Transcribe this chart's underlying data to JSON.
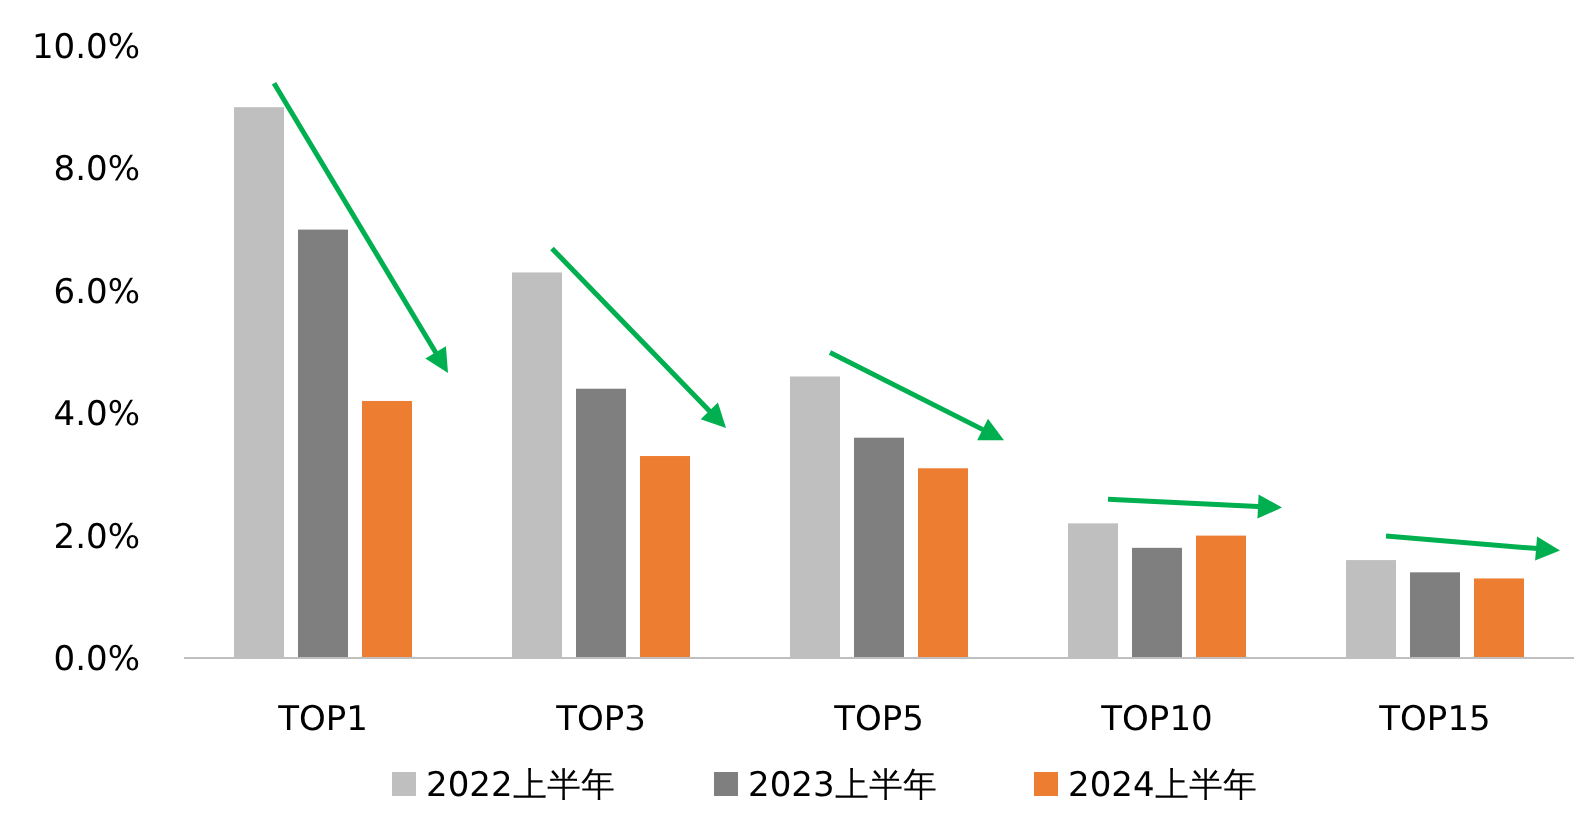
{
  "chart_data": {
    "type": "bar",
    "categories": [
      "TOP1",
      "TOP3",
      "TOP5",
      "TOP10",
      "TOP15"
    ],
    "series": [
      {
        "name": "2022上半年",
        "color": "#bfbfbf",
        "values": [
          9.0,
          6.3,
          4.6,
          2.2,
          1.6
        ]
      },
      {
        "name": "2023上半年",
        "color": "#7f7f7f",
        "values": [
          7.0,
          4.4,
          3.6,
          1.8,
          1.4
        ]
      },
      {
        "name": "2024上半年",
        "color": "#ed7d31",
        "values": [
          4.2,
          3.3,
          3.1,
          2.0,
          1.3
        ]
      }
    ],
    "ylim": [
      0,
      10
    ],
    "yticks": [
      {
        "value": 0,
        "label": "0.0%"
      },
      {
        "value": 2,
        "label": "2.0%"
      },
      {
        "value": 4,
        "label": "4.0%"
      },
      {
        "value": 6,
        "label": "6.0%"
      },
      {
        "value": 8,
        "label": "8.0%"
      },
      {
        "value": 10,
        "label": "10.0%"
      }
    ],
    "grid": false,
    "legend": "bottom"
  }
}
